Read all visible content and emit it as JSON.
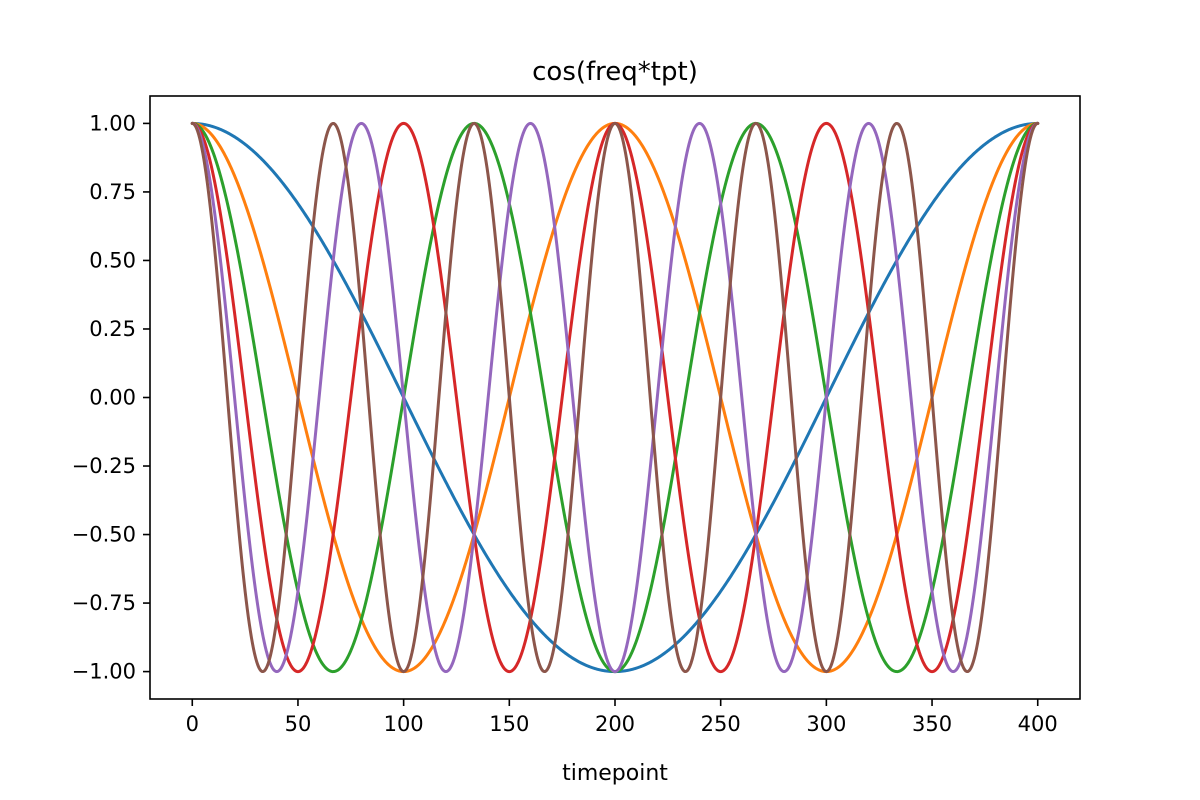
{
  "chart_data": {
    "type": "line",
    "title": "cos(freq*tpt)",
    "xlabel": "timepoint",
    "ylabel": "",
    "xlim": [
      -20,
      420
    ],
    "ylim": [
      -1.1,
      1.1
    ],
    "xticks": [
      0,
      50,
      100,
      150,
      200,
      250,
      300,
      350,
      400
    ],
    "xtick_labels": [
      "0",
      "50",
      "100",
      "150",
      "200",
      "250",
      "300",
      "350",
      "400"
    ],
    "yticks": [
      1.0,
      0.75,
      0.5,
      0.25,
      0.0,
      -0.25,
      -0.5,
      -0.75,
      -1.0
    ],
    "ytick_labels": [
      "1.00",
      "0.75",
      "0.50",
      "0.25",
      "0.00",
      "−0.25",
      "−0.50",
      "−0.75",
      "−1.00"
    ],
    "grid": false,
    "x_range": [
      0,
      400
    ],
    "series": [
      {
        "function": "cos",
        "cycles": 1,
        "color": "#1f77b4"
      },
      {
        "function": "cos",
        "cycles": 2,
        "color": "#ff7f0e"
      },
      {
        "function": "cos",
        "cycles": 3,
        "color": "#2ca02c"
      },
      {
        "function": "cos",
        "cycles": 4,
        "color": "#d62728"
      },
      {
        "function": "cos",
        "cycles": 5,
        "color": "#9467bd"
      },
      {
        "function": "cos",
        "cycles": 6,
        "color": "#8c564b"
      }
    ]
  }
}
